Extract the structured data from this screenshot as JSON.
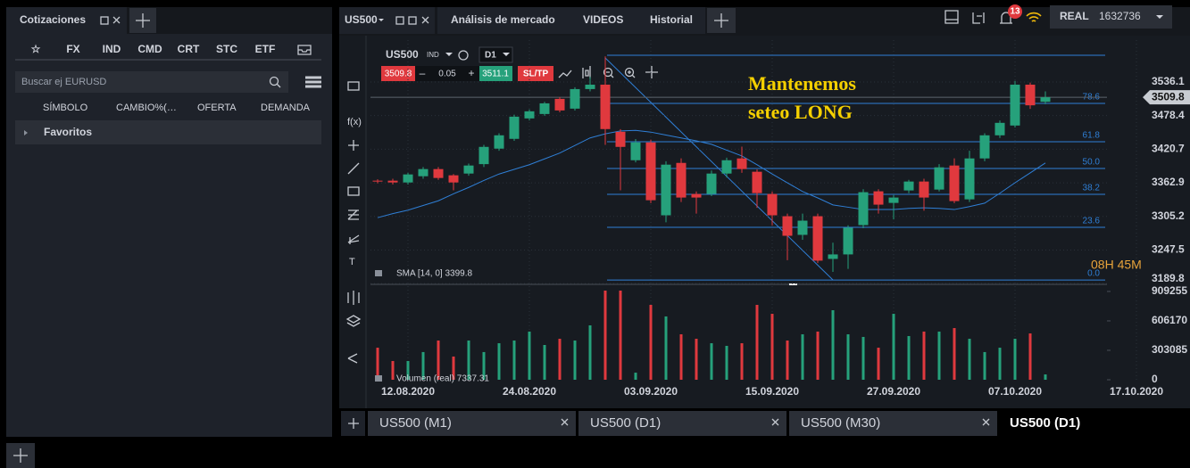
{
  "left_panel": {
    "title": "Cotizaciones",
    "tabs": [
      "☆",
      "FX",
      "IND",
      "CMD",
      "CRT",
      "STC",
      "ETF"
    ],
    "search_placeholder": "Buscar ej EURUSD",
    "columns": [
      "SÍMBOLO",
      "CAMBIO%(…",
      "OFERTA",
      "DEMANDA"
    ],
    "favorites": "Favoritos"
  },
  "top_bar": {
    "chart_tab": "US500",
    "nav": [
      "Análisis de mercado",
      "VIDEOS",
      "Historial"
    ],
    "notifications": "13",
    "account": "REAL",
    "balance": "1632736"
  },
  "chart_toolbar": {
    "symbol": "US500",
    "market": "IND",
    "timeframe": "D1",
    "bid": "3509.8",
    "minus": "–",
    "lot": "0.05",
    "plus": "+",
    "ask": "3511.1",
    "sltp": "SL/TP"
  },
  "tools": {
    "function": "f(x)",
    "text": "T"
  },
  "bottom_tabs": [
    "US500 (M1)",
    "US500 (D1)",
    "US500 (M30)",
    "US500 (D1)"
  ],
  "chart_data": {
    "type": "candlestick",
    "categories": [
      null,
      null,
      "12.08.2020",
      null,
      null,
      null,
      null,
      null,
      null,
      null,
      "24.08.2020",
      null,
      null,
      null,
      null,
      null,
      null,
      null,
      "03.09.2020",
      null,
      null,
      null,
      null,
      null,
      null,
      null,
      "15.09.2020",
      null,
      null,
      null,
      null,
      null,
      null,
      null,
      "27.09.2020",
      null,
      null,
      null,
      null,
      null,
      null,
      null,
      "07.10.2020",
      null,
      null,
      null,
      null,
      null,
      null,
      null,
      "17.10.2020"
    ],
    "open": [
      3366.6,
      3366.6,
      3363.5,
      3374.2,
      3386.5,
      3375.8,
      3378.8,
      3395,
      3421.6,
      3438.4,
      3473.5,
      3481.1,
      3507.1,
      3490.3,
      3523.9,
      3531.5,
      3450.6,
      3401.7,
      3432.3,
      3307.1,
      3397.1,
      3343.7,
      3343.7,
      3378.8,
      3404.8,
      3381.9,
      3343.7,
      3305.5,
      3273.5,
      3305.5,
      3232.2,
      3239.9,
      3290.3,
      3348.3,
      3328.4,
      3349.8,
      3365.1,
      3351.3,
      3392.6,
      3334.5,
      3404.8,
      3444.5,
      3461.3,
      3531.5,
      3502,
      null,
      null,
      null,
      null,
      null,
      null
    ],
    "high": [
      3369,
      3370,
      3380,
      3390,
      3390,
      3378,
      3396,
      3428,
      3448,
      3480,
      3489,
      3502,
      3510,
      3527,
      3545,
      3580,
      3455,
      3438,
      3437,
      3400,
      3405,
      3348,
      3384,
      3406,
      3425,
      3386,
      3348,
      3310,
      3310,
      3310,
      3260,
      3290,
      3352,
      3352,
      3342,
      3368,
      3370,
      3395,
      3405,
      3418,
      3448,
      3470,
      3538,
      3535,
      3520,
      null,
      null,
      null,
      null,
      null,
      null
    ],
    "low": [
      3362,
      3360,
      3360,
      3370,
      3368,
      3350,
      3375,
      3390,
      3418,
      3435,
      3470,
      3478,
      3484,
      3487,
      3520,
      3428,
      3350,
      3398,
      3328,
      3295,
      3330,
      3310,
      3340,
      3372,
      3380,
      3320,
      3290,
      3230,
      3265,
      3225,
      3210,
      3215,
      3285,
      3310,
      3300,
      3345,
      3315,
      3348,
      3328,
      3330,
      3400,
      3440,
      3458,
      3490,
      3498,
      null,
      null,
      null,
      null,
      null,
      null
    ],
    "close": [
      3365.1,
      3363.5,
      3377.3,
      3386.5,
      3371.2,
      3363.5,
      3392.6,
      3424.6,
      3444.5,
      3476.5,
      3485.7,
      3499.4,
      3487.2,
      3523.9,
      3531.5,
      3455.2,
      3424.6,
      3432.3,
      3333,
      3394.1,
      3337.6,
      3337.6,
      3378.8,
      3401.7,
      3386.5,
      3345.2,
      3307.1,
      3271.9,
      3297.9,
      3229.2,
      3239.9,
      3285.7,
      3346.8,
      3325.4,
      3337.6,
      3365.1,
      3337.6,
      3389.5,
      3331.5,
      3404.8,
      3444.5,
      3465.9,
      3531.5,
      3496,
      3509.8,
      null,
      null,
      null,
      null,
      null,
      null
    ],
    "up_color": "#26a17b",
    "down_color": "#e0393e",
    "sma": {
      "label": "SMA [14, 0] 3399.8",
      "color": "#2f7fd6",
      "values": [
        3303,
        3310,
        3316,
        3324,
        3332,
        3344,
        3355,
        3367,
        3378,
        3386,
        3394,
        3404,
        3414,
        3427,
        3440,
        3447,
        3452,
        3453,
        3450,
        3445,
        3440,
        3435,
        3429,
        3419,
        3409,
        3394,
        3378,
        3363,
        3348,
        3337,
        3325,
        3321,
        3317,
        3317,
        3317,
        3319,
        3320,
        3319,
        3317,
        3322,
        3328,
        3345,
        3363,
        3380,
        3397,
        null,
        null,
        null,
        null,
        null,
        null
      ]
    },
    "ylim": [
      3190,
      3608
    ],
    "yticks": [
      3536.1,
      3478.4,
      3420.7,
      3362.9,
      3305.2,
      3247.5,
      3189.8
    ],
    "grid": true,
    "last_price": 3509.8,
    "fib_color": "#2f7fd6",
    "fib_top": 3582,
    "fib_levels": [
      {
        "label": "78.6",
        "price": 3499.3
      },
      {
        "label": "61.8",
        "price": 3433.4
      },
      {
        "label": "50.0",
        "price": 3387.5
      },
      {
        "label": "38.2",
        "price": 3343.1
      },
      {
        "label": "23.6",
        "price": 3286.4
      },
      {
        "label": "0.0",
        "price": 3196
      }
    ],
    "annotation": [
      "Mantenemos",
      "seteo LONG"
    ],
    "timer": "08H 45M",
    "volume": {
      "label": "Volumen (real) 7337.31",
      "values": [
        330000,
        193000,
        193000,
        285000,
        404000,
        239000,
        404000,
        285000,
        376000,
        404000,
        496000,
        358000,
        422000,
        404000,
        560000,
        918000,
        918000,
        73000,
        771000,
        652000,
        468000,
        422000,
        376000,
        349000,
        376000,
        771000,
        679000,
        404000,
        468000,
        496000,
        716000,
        468000,
        441000,
        330000,
        679000,
        450000,
        496000,
        496000,
        532000,
        422000,
        285000,
        330000,
        422000,
        477000,
        55000,
        null,
        null,
        null,
        null,
        null,
        null
      ],
      "ylim": [
        0,
        973000
      ],
      "yticks": [
        0,
        303085,
        606170,
        909255
      ]
    }
  }
}
